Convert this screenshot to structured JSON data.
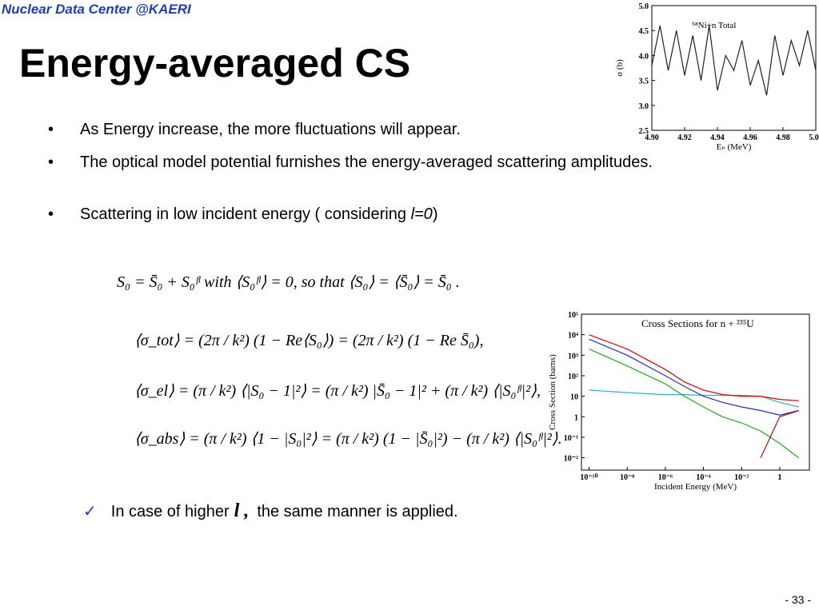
{
  "header": "Nuclear Data Center @KAERI",
  "title": "Energy-averaged CS",
  "bullets": [
    {
      "text": "As Energy increase, the more fluctuations will appear."
    },
    {
      "text": "The optical model potential furnishes the energy-averaged scattering amplitudes."
    },
    {
      "text": "Scattering in low incident energy ( considering ",
      "italic": "l=0",
      "tail": ")"
    }
  ],
  "equations": [
    "S₀ = S̄₀ + S₀ᶠˡ      with ⟨S₀ᶠˡ⟩ = 0,   so that ⟨S₀⟩ = ⟨S̄₀⟩ = S̄₀ .",
    "⟨σ_tot⟩ = (2π / k²) (1 − Re⟨S₀⟩) = (2π / k²) (1 − Re S̄₀),",
    "⟨σ_el⟩ = (π / k²) ⟨|S₀ − 1|²⟩ = (π / k²) |S̄₀ − 1|² + (π / k²) ⟨|S₀ᶠˡ|²⟩,",
    "⟨σ_abs⟩ = (π / k²) ⟨1 − |S₀|²⟩ = (π / k²) (1 − |S̄₀|²) − (π / k²) ⟨|S₀ᶠˡ|²⟩."
  ],
  "check": {
    "mark": "✓",
    "before": "In case of higher",
    "symbol": "l ,",
    "after": "the same manner is applied."
  },
  "page_number": "- 33 -",
  "chart_data": [
    {
      "type": "line",
      "annotation": "⁵⁸Ni+n   Total",
      "x_label": "Eₙ (MeV)",
      "y_label": "σ (b)",
      "x": [
        4.9,
        4.905,
        4.91,
        4.915,
        4.92,
        4.925,
        4.93,
        4.935,
        4.94,
        4.945,
        4.95,
        4.955,
        4.96,
        4.965,
        4.97,
        4.975,
        4.98,
        4.985,
        4.99,
        4.995,
        5.0
      ],
      "series": [
        {
          "color": "#222222",
          "values": [
            3.8,
            4.6,
            3.7,
            4.5,
            3.6,
            4.4,
            3.5,
            4.6,
            3.3,
            4.0,
            3.7,
            4.3,
            3.4,
            3.9,
            3.2,
            4.4,
            3.6,
            4.3,
            3.8,
            4.5,
            3.7
          ]
        }
      ],
      "xlim": [
        4.9,
        5.0
      ],
      "ylim": [
        2.5,
        5.0
      ],
      "xticks": [
        {
          "value": 4.9,
          "label": "4.90"
        },
        4.92,
        4.94,
        4.96,
        4.98,
        {
          "value": 5,
          "label": "5.00"
        }
      ],
      "yticks": [
        2.5,
        {
          "value": 3,
          "label": "3.0"
        },
        3.5,
        {
          "value": 4,
          "label": "4.0"
        },
        4.5,
        {
          "value": 5,
          "label": "5.0"
        }
      ],
      "log": false
    },
    {
      "type": "line",
      "title": "Cross Sections for n + ²³⁵U",
      "x_label": "Incident Energy (MeV)",
      "y_label": "Cross Section (barns)",
      "x": [
        1e-10,
        1e-08,
        1e-06,
        1e-05,
        0.0001,
        0.001,
        0.01,
        0.1,
        1,
        10
      ],
      "series": [
        {
          "color": "#2ab0c8",
          "values": [
            20,
            15,
            12,
            12,
            11,
            11,
            11,
            10,
            5,
            3
          ]
        },
        {
          "color": "#22aa22",
          "values": [
            2000,
            300,
            40,
            10,
            3,
            1,
            0.5,
            0.2,
            0.05,
            0.01
          ]
        },
        {
          "color": "#2030c0",
          "values": [
            6000,
            1000,
            100,
            30,
            10,
            5,
            3,
            2,
            1.2,
            2
          ]
        },
        {
          "color": "#e00000",
          "values": [
            10000,
            2000,
            200,
            50,
            20,
            12,
            10,
            10,
            7,
            6
          ]
        },
        {
          "color": "#a01010",
          "values": [
            null,
            null,
            null,
            null,
            null,
            null,
            null,
            0.01,
            1,
            2
          ]
        }
      ],
      "xlim": [
        4e-11,
        36
      ],
      "ylim": [
        0.0025,
        100000
      ],
      "xticks": [
        {
          "value": 1e-10,
          "label": "10⁻¹⁰"
        },
        {
          "value": 1e-08,
          "label": "10⁻⁸"
        },
        {
          "value": 1e-06,
          "label": "10⁻⁶"
        },
        {
          "value": 0.0001,
          "label": "10⁻⁴"
        },
        {
          "value": 0.01,
          "label": "10⁻²"
        },
        1
      ],
      "yticks": [
        {
          "value": 0.01,
          "label": "10⁻²"
        },
        {
          "value": 0.1,
          "label": "10⁻¹"
        },
        1,
        10,
        {
          "value": 100,
          "label": "10²"
        },
        {
          "value": 1000,
          "label": "10³"
        },
        {
          "value": 10000,
          "label": "10⁴"
        },
        {
          "value": 100000,
          "label": "10⁵"
        }
      ],
      "log": true
    }
  ]
}
